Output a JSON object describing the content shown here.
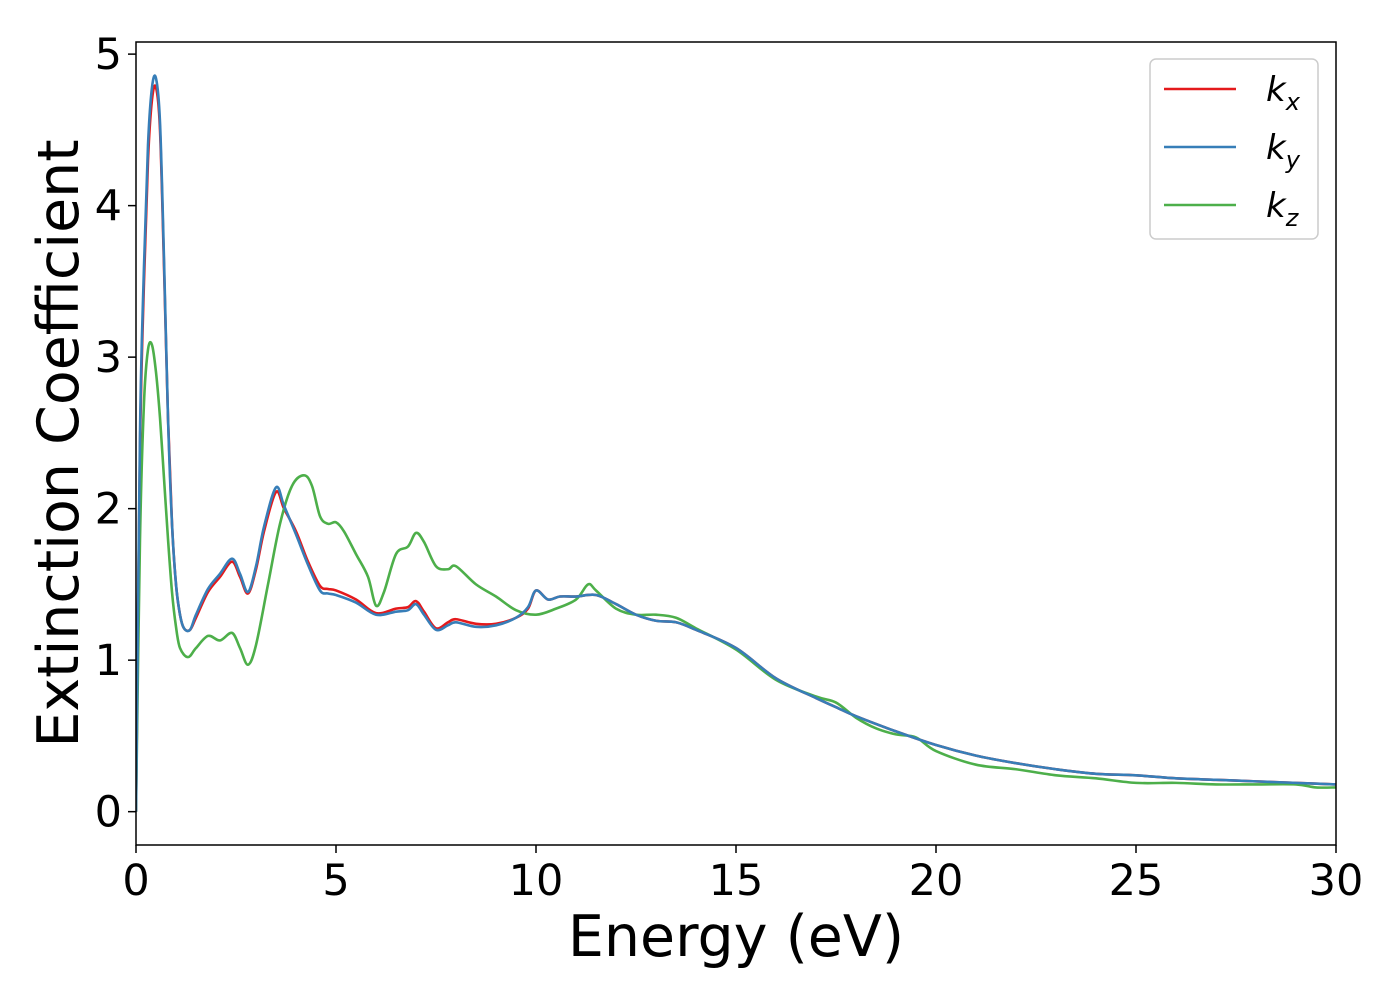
{
  "chart_data": {
    "type": "line",
    "xlabel": "Energy (eV)",
    "ylabel": "Extinction Coefficient",
    "xlim": [
      0,
      30
    ],
    "ylim": [
      -0.22,
      5.08
    ],
    "xticks": [
      "0",
      "5",
      "10",
      "15",
      "20",
      "25",
      "30"
    ],
    "yticks": [
      "0",
      "1",
      "2",
      "3",
      "4",
      "5"
    ],
    "grid": false,
    "legend_position": "top-right",
    "series": [
      {
        "name": "k",
        "subscript": "x",
        "color": "#e41a1c",
        "x": [
          0,
          0.1,
          0.2,
          0.3,
          0.4,
          0.5,
          0.6,
          0.7,
          0.8,
          0.9,
          1.0,
          1.1,
          1.2,
          1.35,
          1.5,
          1.8,
          2.1,
          2.4,
          2.6,
          2.8,
          3.0,
          3.2,
          3.5,
          3.7,
          4.0,
          4.3,
          4.6,
          4.8,
          5.0,
          5.5,
          6.0,
          6.5,
          6.8,
          7.0,
          7.2,
          7.5,
          7.8,
          8.0,
          8.5,
          9.0,
          9.5,
          9.8,
          10.0,
          10.3,
          10.6,
          11.0,
          11.5,
          12.0,
          12.5,
          13.0,
          13.5,
          14.0,
          15.0,
          16.0,
          17.0,
          17.5,
          18.0,
          19.0,
          20.0,
          21.0,
          22.0,
          23.0,
          24.0,
          25.0,
          26.0,
          27.0,
          28.0,
          29.0,
          30.0
        ],
        "y": [
          0.0,
          2.4,
          3.5,
          4.3,
          4.7,
          4.78,
          4.5,
          3.6,
          2.6,
          1.9,
          1.5,
          1.3,
          1.21,
          1.2,
          1.28,
          1.45,
          1.55,
          1.65,
          1.55,
          1.44,
          1.6,
          1.85,
          2.11,
          2.0,
          1.85,
          1.65,
          1.49,
          1.47,
          1.46,
          1.4,
          1.31,
          1.34,
          1.35,
          1.39,
          1.32,
          1.21,
          1.25,
          1.27,
          1.24,
          1.24,
          1.28,
          1.34,
          1.46,
          1.4,
          1.42,
          1.42,
          1.43,
          1.37,
          1.3,
          1.26,
          1.25,
          1.2,
          1.08,
          0.88,
          0.75,
          0.69,
          0.63,
          0.53,
          0.44,
          0.37,
          0.32,
          0.28,
          0.25,
          0.24,
          0.22,
          0.21,
          0.2,
          0.19,
          0.18
        ]
      },
      {
        "name": "k",
        "subscript": "y",
        "color": "#377eb8",
        "x": [
          0,
          0.1,
          0.2,
          0.3,
          0.4,
          0.5,
          0.6,
          0.7,
          0.8,
          0.9,
          1.0,
          1.1,
          1.2,
          1.35,
          1.5,
          1.8,
          2.1,
          2.4,
          2.6,
          2.8,
          3.0,
          3.2,
          3.5,
          3.7,
          4.0,
          4.3,
          4.6,
          4.8,
          5.0,
          5.5,
          6.0,
          6.5,
          6.8,
          7.0,
          7.2,
          7.5,
          7.8,
          8.0,
          8.5,
          9.0,
          9.5,
          9.8,
          10.0,
          10.3,
          10.6,
          11.0,
          11.5,
          12.0,
          12.5,
          13.0,
          13.5,
          14.0,
          15.0,
          16.0,
          17.0,
          17.5,
          18.0,
          19.0,
          20.0,
          21.0,
          22.0,
          23.0,
          24.0,
          25.0,
          26.0,
          27.0,
          28.0,
          29.0,
          30.0
        ],
        "y": [
          0.0,
          2.5,
          3.6,
          4.4,
          4.78,
          4.84,
          4.55,
          3.65,
          2.6,
          1.9,
          1.5,
          1.3,
          1.21,
          1.2,
          1.3,
          1.47,
          1.57,
          1.67,
          1.57,
          1.45,
          1.62,
          1.88,
          2.14,
          2.02,
          1.83,
          1.63,
          1.46,
          1.44,
          1.43,
          1.38,
          1.3,
          1.32,
          1.33,
          1.37,
          1.3,
          1.2,
          1.23,
          1.25,
          1.22,
          1.23,
          1.28,
          1.35,
          1.46,
          1.4,
          1.42,
          1.42,
          1.43,
          1.37,
          1.3,
          1.26,
          1.25,
          1.2,
          1.08,
          0.88,
          0.75,
          0.69,
          0.63,
          0.53,
          0.44,
          0.37,
          0.32,
          0.28,
          0.25,
          0.24,
          0.22,
          0.21,
          0.2,
          0.19,
          0.18
        ]
      },
      {
        "name": "k",
        "subscript": "z",
        "color": "#4daf4a",
        "x": [
          0,
          0.1,
          0.2,
          0.3,
          0.4,
          0.5,
          0.6,
          0.7,
          0.8,
          0.9,
          1.0,
          1.1,
          1.3,
          1.5,
          1.8,
          2.1,
          2.4,
          2.6,
          2.8,
          3.0,
          3.3,
          3.6,
          3.9,
          4.2,
          4.4,
          4.6,
          4.8,
          5.0,
          5.2,
          5.5,
          5.8,
          6.0,
          6.2,
          6.5,
          6.8,
          7.0,
          7.2,
          7.5,
          7.8,
          8.0,
          8.5,
          9.0,
          9.5,
          10.0,
          10.5,
          11.0,
          11.3,
          11.5,
          12.0,
          12.5,
          13.0,
          13.5,
          14.0,
          15.0,
          16.0,
          17.0,
          17.5,
          18.0,
          18.5,
          19.0,
          19.5,
          20.0,
          21.0,
          22.0,
          23.0,
          24.0,
          25.0,
          26.0,
          27.0,
          28.0,
          29.0,
          29.5,
          30.0
        ],
        "y": [
          0.0,
          1.8,
          2.7,
          3.05,
          3.08,
          2.9,
          2.6,
          2.2,
          1.8,
          1.45,
          1.22,
          1.08,
          1.02,
          1.08,
          1.16,
          1.13,
          1.18,
          1.08,
          0.97,
          1.1,
          1.5,
          1.9,
          2.15,
          2.22,
          2.15,
          1.95,
          1.9,
          1.91,
          1.85,
          1.7,
          1.55,
          1.36,
          1.45,
          1.7,
          1.75,
          1.84,
          1.78,
          1.62,
          1.6,
          1.62,
          1.5,
          1.42,
          1.33,
          1.3,
          1.34,
          1.4,
          1.5,
          1.46,
          1.34,
          1.3,
          1.3,
          1.28,
          1.21,
          1.07,
          0.87,
          0.76,
          0.72,
          0.62,
          0.55,
          0.51,
          0.49,
          0.4,
          0.31,
          0.28,
          0.24,
          0.22,
          0.19,
          0.19,
          0.18,
          0.18,
          0.18,
          0.16,
          0.16
        ]
      }
    ]
  }
}
